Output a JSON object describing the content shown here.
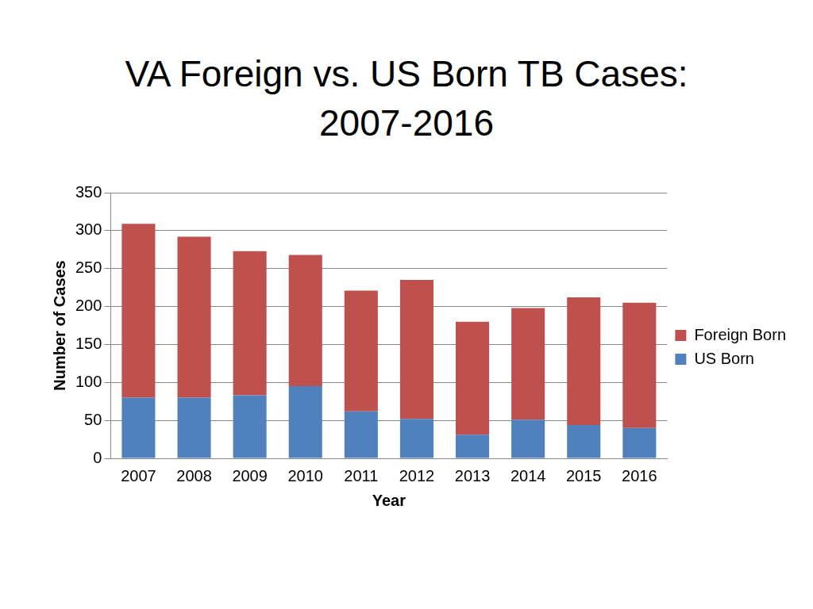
{
  "chart_data": {
    "type": "bar",
    "title": "VA Foreign vs. US Born TB Cases: 2007-2016",
    "x_label": "Year",
    "y_label": "Number of Cases",
    "categories": [
      "2007",
      "2008",
      "2009",
      "2010",
      "2011",
      "2012",
      "2013",
      "2014",
      "2015",
      "2016"
    ],
    "series": [
      {
        "name": "US Born",
        "color": "#4f81bd",
        "values": [
          80,
          80,
          83,
          95,
          62,
          52,
          31,
          51,
          44,
          40
        ]
      },
      {
        "name": "Foreign Born",
        "color": "#c0504d",
        "values": [
          229,
          212,
          190,
          173,
          159,
          183,
          149,
          147,
          168,
          165
        ]
      }
    ],
    "stacked": true,
    "ylim": [
      0,
      350
    ],
    "yticks": [
      0,
      50,
      100,
      150,
      200,
      250,
      300,
      350
    ],
    "grid": true,
    "legend": "right"
  }
}
